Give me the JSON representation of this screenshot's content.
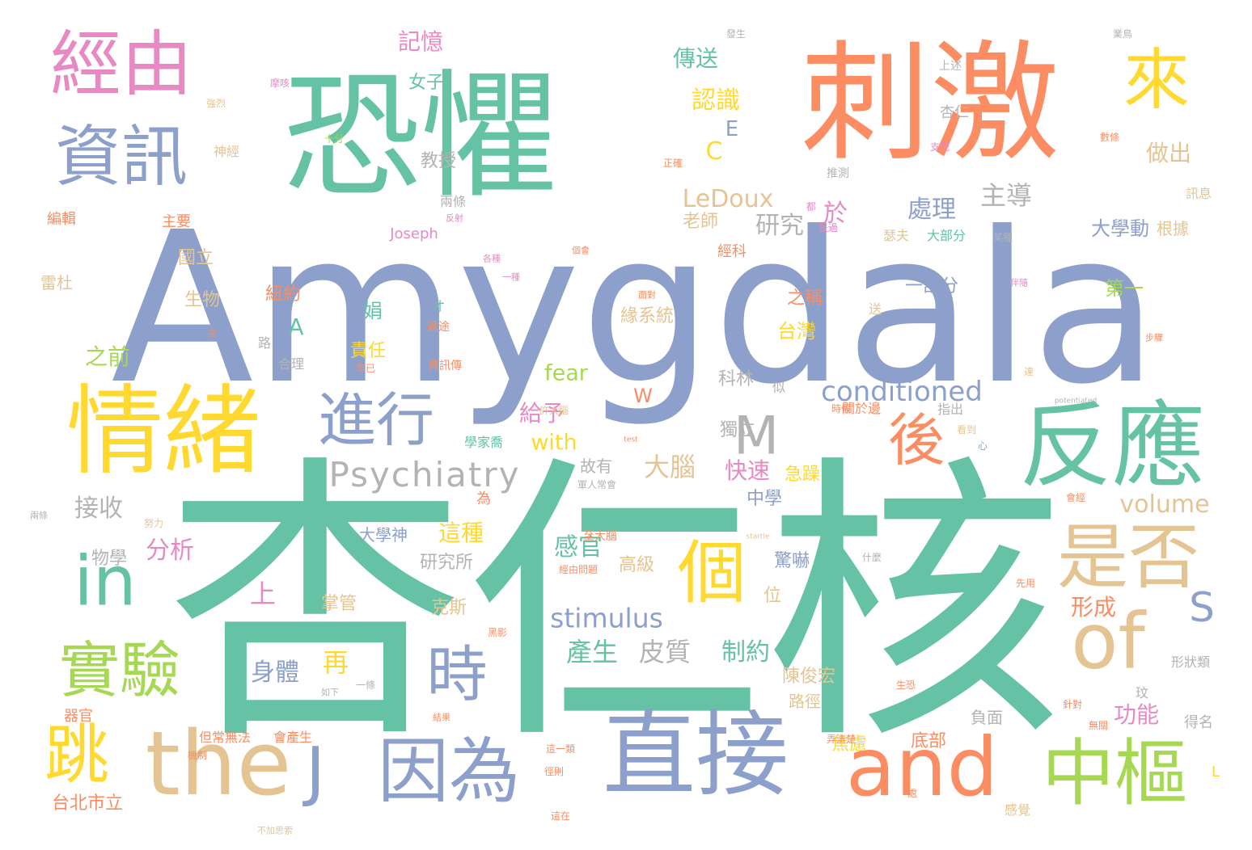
{
  "palette": {
    "green": "#66c2a5",
    "orange": "#fc8d62",
    "blue": "#8da0cb",
    "pink": "#e78ac3",
    "lime": "#a6d854",
    "yellow": "#ffd92f",
    "tan": "#e5c494",
    "gray": "#b3b3b3"
  },
  "words": [
    {
      "text": "杏仁核",
      "w": 1.0,
      "color": "green"
    },
    {
      "text": "Amygdala",
      "w": 0.9,
      "color": "blue"
    },
    {
      "text": "恐懼",
      "w": 0.6,
      "color": "green"
    },
    {
      "text": "刺激",
      "w": 0.55,
      "color": "orange"
    },
    {
      "text": "情緒",
      "w": 0.42,
      "color": "yellow"
    },
    {
      "text": "直接",
      "w": 0.4,
      "color": "blue"
    },
    {
      "text": "反應",
      "w": 0.38,
      "color": "green"
    },
    {
      "text": "the",
      "w": 0.35,
      "color": "tan"
    },
    {
      "text": "中樞",
      "w": 0.32,
      "color": "lime"
    },
    {
      "text": "and",
      "w": 0.32,
      "color": "orange"
    },
    {
      "text": "因為",
      "w": 0.32,
      "color": "blue"
    },
    {
      "text": "of",
      "w": 0.3,
      "color": "tan"
    },
    {
      "text": "是否",
      "w": 0.3,
      "color": "tan"
    },
    {
      "text": "經由",
      "w": 0.3,
      "color": "pink"
    },
    {
      "text": "資訊",
      "w": 0.28,
      "color": "blue"
    },
    {
      "text": "來",
      "w": 0.28,
      "color": "yellow"
    },
    {
      "text": "個",
      "w": 0.28,
      "color": "yellow"
    },
    {
      "text": "進行",
      "w": 0.26,
      "color": "blue"
    },
    {
      "text": "後",
      "w": 0.26,
      "color": "orange"
    },
    {
      "text": "時",
      "w": 0.26,
      "color": "blue"
    },
    {
      "text": "實驗",
      "w": 0.26,
      "color": "lime"
    },
    {
      "text": "跳",
      "w": 0.26,
      "color": "yellow"
    },
    {
      "text": "in",
      "w": 0.26,
      "color": "green"
    },
    {
      "text": "J",
      "w": 0.22,
      "color": "blue"
    },
    {
      "text": "M",
      "w": 0.2,
      "color": "gray"
    },
    {
      "text": "S",
      "w": 0.15,
      "color": "blue"
    },
    {
      "text": "Psychiatry",
      "w": 0.14,
      "color": "gray"
    },
    {
      "text": "conditioned",
      "w": 0.11,
      "color": "blue"
    },
    {
      "text": "LeDoux",
      "w": 0.1,
      "color": "tan"
    },
    {
      "text": "stimulus",
      "w": 0.1,
      "color": "blue"
    },
    {
      "text": "volume",
      "w": 0.09,
      "color": "tan"
    },
    {
      "text": "fear",
      "w": 0.09,
      "color": "lime"
    },
    {
      "text": "with",
      "w": 0.09,
      "color": "yellow"
    },
    {
      "text": "大腦",
      "w": 0.1,
      "color": "tan"
    },
    {
      "text": "主導",
      "w": 0.1,
      "color": "gray"
    },
    {
      "text": "處理",
      "w": 0.1,
      "color": "blue"
    },
    {
      "text": "研究",
      "w": 0.1,
      "color": "gray"
    },
    {
      "text": "傳送",
      "w": 0.1,
      "color": "green"
    },
    {
      "text": "認識",
      "w": 0.1,
      "color": "yellow"
    },
    {
      "text": "記憶",
      "w": 0.1,
      "color": "pink"
    },
    {
      "text": "做出",
      "w": 0.1,
      "color": "tan"
    },
    {
      "text": "皮質",
      "w": 0.1,
      "color": "gray"
    },
    {
      "text": "產生",
      "w": 0.1,
      "color": "green"
    },
    {
      "text": "制約",
      "w": 0.1,
      "color": "green"
    },
    {
      "text": "身體",
      "w": 0.1,
      "color": "blue"
    },
    {
      "text": "再",
      "w": 0.1,
      "color": "yellow"
    },
    {
      "text": "感官",
      "w": 0.1,
      "color": "green"
    },
    {
      "text": "這種",
      "w": 0.1,
      "color": "yellow"
    },
    {
      "text": "分析",
      "w": 0.1,
      "color": "pink"
    },
    {
      "text": "接收",
      "w": 0.1,
      "color": "gray"
    },
    {
      "text": "快速",
      "w": 0.1,
      "color": "pink"
    },
    {
      "text": "給予",
      "w": 0.1,
      "color": "pink"
    },
    {
      "text": "功能",
      "w": 0.1,
      "color": "pink"
    },
    {
      "text": "形成",
      "w": 0.1,
      "color": "orange"
    },
    {
      "text": "於",
      "w": 0.1,
      "color": "pink"
    },
    {
      "text": "上",
      "w": 0.1,
      "color": "pink"
    },
    {
      "text": "之前",
      "w": 0.08,
      "color": "lime"
    },
    {
      "text": "A",
      "w": 0.1,
      "color": "green"
    },
    {
      "text": "C",
      "w": 0.1,
      "color": "yellow"
    },
    {
      "text": "E",
      "w": 0.08,
      "color": "blue"
    },
    {
      "text": "W",
      "w": 0.08,
      "color": "orange"
    },
    {
      "text": "老師",
      "w": 0.07,
      "color": "tan"
    },
    {
      "text": "教授",
      "w": 0.07,
      "color": "gray"
    },
    {
      "text": "女子",
      "w": 0.07,
      "color": "green"
    },
    {
      "text": "大學動",
      "w": 0.07,
      "color": "blue"
    },
    {
      "text": "一部分",
      "w": 0.07,
      "color": "blue"
    },
    {
      "text": "第一",
      "w": 0.07,
      "color": "lime"
    },
    {
      "text": "緣系統",
      "w": 0.07,
      "color": "tan"
    },
    {
      "text": "台灣",
      "w": 0.07,
      "color": "yellow"
    },
    {
      "text": "之稱",
      "w": 0.07,
      "color": "orange"
    },
    {
      "text": "責任",
      "w": 0.07,
      "color": "yellow"
    },
    {
      "text": "國立",
      "w": 0.07,
      "color": "tan"
    },
    {
      "text": "生物",
      "w": 0.07,
      "color": "tan"
    },
    {
      "text": "紐約",
      "w": 0.07,
      "color": "orange"
    },
    {
      "text": "娟",
      "w": 0.07,
      "color": "green"
    },
    {
      "text": "科林",
      "w": 0.07,
      "color": "gray"
    },
    {
      "text": "獨立",
      "w": 0.07,
      "color": "gray"
    },
    {
      "text": "急躁",
      "w": 0.07,
      "color": "yellow"
    },
    {
      "text": "中學",
      "w": 0.07,
      "color": "blue"
    },
    {
      "text": "故有",
      "w": 0.07,
      "color": "gray"
    },
    {
      "text": "大學神",
      "w": 0.07,
      "color": "blue"
    },
    {
      "text": "研究所",
      "w": 0.07,
      "color": "gray"
    },
    {
      "text": "物學",
      "w": 0.07,
      "color": "gray"
    },
    {
      "text": "高級",
      "w": 0.07,
      "color": "tan"
    },
    {
      "text": "掌管",
      "w": 0.07,
      "color": "tan"
    },
    {
      "text": "位",
      "w": 0.07,
      "color": "tan"
    },
    {
      "text": "驚嚇",
      "w": 0.07,
      "color": "blue"
    },
    {
      "text": "陳俊宏",
      "w": 0.07,
      "color": "tan"
    },
    {
      "text": "路徑",
      "w": 0.07,
      "color": "tan"
    },
    {
      "text": "焦慮",
      "w": 0.07,
      "color": "yellow"
    },
    {
      "text": "底部",
      "w": 0.07,
      "color": "orange"
    },
    {
      "text": "負面",
      "w": 0.07,
      "color": "gray"
    },
    {
      "text": "克斯",
      "w": 0.07,
      "color": "tan"
    },
    {
      "text": "台北市立",
      "w": 0.07,
      "color": "orange"
    },
    {
      "text": "器官",
      "w": 0.06,
      "color": "orange"
    },
    {
      "text": "編輯",
      "w": 0.06,
      "color": "orange"
    },
    {
      "text": "主要",
      "w": 0.06,
      "color": "orange"
    },
    {
      "text": "雷杜",
      "w": 0.06,
      "color": "tan"
    },
    {
      "text": "神經",
      "w": 0.05,
      "color": "tan"
    },
    {
      "text": "兩條",
      "w": 0.05,
      "color": "gray"
    },
    {
      "text": "Joseph",
      "w": 0.05,
      "color": "pink"
    },
    {
      "text": "經科",
      "w": 0.05,
      "color": "orange"
    },
    {
      "text": "瑟夫",
      "w": 0.05,
      "color": "tan"
    },
    {
      "text": "大部分",
      "w": 0.05,
      "color": "green"
    },
    {
      "text": "杏仁",
      "w": 0.05,
      "color": "gray"
    },
    {
      "text": "上述",
      "w": 0.05,
      "color": "gray"
    },
    {
      "text": "推測",
      "w": 0.05,
      "color": "gray"
    },
    {
      "text": "根據",
      "w": 0.06,
      "color": "tan"
    },
    {
      "text": "訊息",
      "w": 0.05,
      "color": "tan"
    },
    {
      "text": "得名",
      "w": 0.05,
      "color": "gray"
    },
    {
      "text": "形狀類",
      "w": 0.05,
      "color": "gray"
    },
    {
      "text": "指出",
      "w": 0.05,
      "color": "gray"
    },
    {
      "text": "關於邊",
      "w": 0.05,
      "color": "orange"
    },
    {
      "text": "感覺",
      "w": 0.05,
      "color": "tan"
    },
    {
      "text": "資訊傳",
      "w": 0.05,
      "color": "orange"
    },
    {
      "text": "遞途",
      "w": 0.05,
      "color": "orange"
    },
    {
      "text": "學家喬",
      "w": 0.05,
      "color": "green"
    },
    {
      "text": "至大腦",
      "w": 0.05,
      "color": "orange"
    },
    {
      "text": "會產生",
      "w": 0.05,
      "color": "orange"
    },
    {
      "text": "但常無法",
      "w": 0.05,
      "color": "orange"
    },
    {
      "text": "玟",
      "w": 0.05,
      "color": "gray"
    },
    {
      "text": "似",
      "w": 0.05,
      "color": "gray"
    },
    {
      "text": "路",
      "w": 0.05,
      "color": "gray"
    },
    {
      "text": "合理",
      "w": 0.05,
      "color": "gray"
    },
    {
      "text": "為",
      "w": 0.05,
      "color": "orange"
    },
    {
      "text": "L",
      "w": 0.05,
      "color": "yellow"
    },
    {
      "text": "才",
      "w": 0.05,
      "color": "green"
    },
    {
      "text": "送",
      "w": 0.05,
      "color": "tan"
    },
    {
      "text": "十分",
      "w": 0.04,
      "color": "lime"
    },
    {
      "text": "強烈",
      "w": 0.04,
      "color": "tan"
    },
    {
      "text": "摩咳",
      "w": 0.04,
      "color": "pink"
    },
    {
      "text": "發生",
      "w": 0.04,
      "color": "gray"
    },
    {
      "text": "業鳥",
      "w": 0.04,
      "color": "gray"
    },
    {
      "text": "支配",
      "w": 0.04,
      "color": "pink"
    },
    {
      "text": "數條",
      "w": 0.04,
      "color": "orange"
    },
    {
      "text": "正確",
      "w": 0.04,
      "color": "orange"
    },
    {
      "text": "是過",
      "w": 0.04,
      "color": "pink"
    },
    {
      "text": "都",
      "w": 0.04,
      "color": "pink"
    },
    {
      "text": "某種",
      "w": 0.04,
      "color": "gray"
    },
    {
      "text": "時候",
      "w": 0.04,
      "color": "orange"
    },
    {
      "text": "看到",
      "w": 0.04,
      "color": "tan"
    },
    {
      "text": "早已",
      "w": 0.04,
      "color": "orange"
    },
    {
      "text": "許大腦",
      "w": 0.04,
      "color": "tan"
    },
    {
      "text": "心",
      "w": 0.04,
      "color": "blue"
    },
    {
      "text": "會經",
      "w": 0.04,
      "color": "orange"
    },
    {
      "text": "生恐",
      "w": 0.04,
      "color": "orange"
    },
    {
      "text": "針對",
      "w": 0.04,
      "color": "orange"
    },
    {
      "text": "無關",
      "w": 0.04,
      "color": "orange"
    },
    {
      "text": "弄清楚",
      "w": 0.04,
      "color": "orange"
    },
    {
      "text": "達",
      "w": 0.04,
      "color": "tan"
    },
    {
      "text": "先用",
      "w": 0.04,
      "color": "orange"
    },
    {
      "text": "什麼",
      "w": 0.04,
      "color": "gray"
    },
    {
      "text": "處",
      "w": 0.04,
      "color": "orange"
    },
    {
      "text": "軍人常會",
      "w": 0.04,
      "color": "gray"
    },
    {
      "text": "經由問題",
      "w": 0.04,
      "color": "orange"
    },
    {
      "text": "黑影",
      "w": 0.04,
      "color": "orange"
    },
    {
      "text": "這一類",
      "w": 0.04,
      "color": "orange"
    },
    {
      "text": "徑則",
      "w": 0.04,
      "color": "orange"
    },
    {
      "text": "這在",
      "w": 0.04,
      "color": "orange"
    },
    {
      "text": "一條",
      "w": 0.04,
      "color": "gray"
    },
    {
      "text": "如下",
      "w": 0.04,
      "color": "gray"
    },
    {
      "text": "結果",
      "w": 0.04,
      "color": "orange"
    },
    {
      "text": "機制",
      "w": 0.04,
      "color": "orange"
    },
    {
      "text": "不加思索",
      "w": 0.04,
      "color": "tan"
    },
    {
      "text": "努力",
      "w": 0.04,
      "color": "tan"
    },
    {
      "text": "兩條",
      "w": 0.04,
      "color": "gray"
    },
    {
      "text": "反射",
      "w": 0.04,
      "color": "pink"
    },
    {
      "text": "伴隨",
      "w": 0.04,
      "color": "pink"
    },
    {
      "text": "各種",
      "w": 0.04,
      "color": "pink"
    },
    {
      "text": "一種",
      "w": 0.04,
      "color": "pink"
    },
    {
      "text": "個會",
      "w": 0.04,
      "color": "orange"
    },
    {
      "text": "突",
      "w": 0.04,
      "color": "orange"
    },
    {
      "text": "面對",
      "w": 0.04,
      "color": "orange"
    },
    {
      "text": "步驟",
      "w": 0.04,
      "color": "orange"
    },
    {
      "text": "potentiated",
      "w": 0.03,
      "color": "gray"
    },
    {
      "text": "startle",
      "w": 0.03,
      "color": "tan"
    },
    {
      "text": "test",
      "w": 0.03,
      "color": "orange"
    }
  ]
}
